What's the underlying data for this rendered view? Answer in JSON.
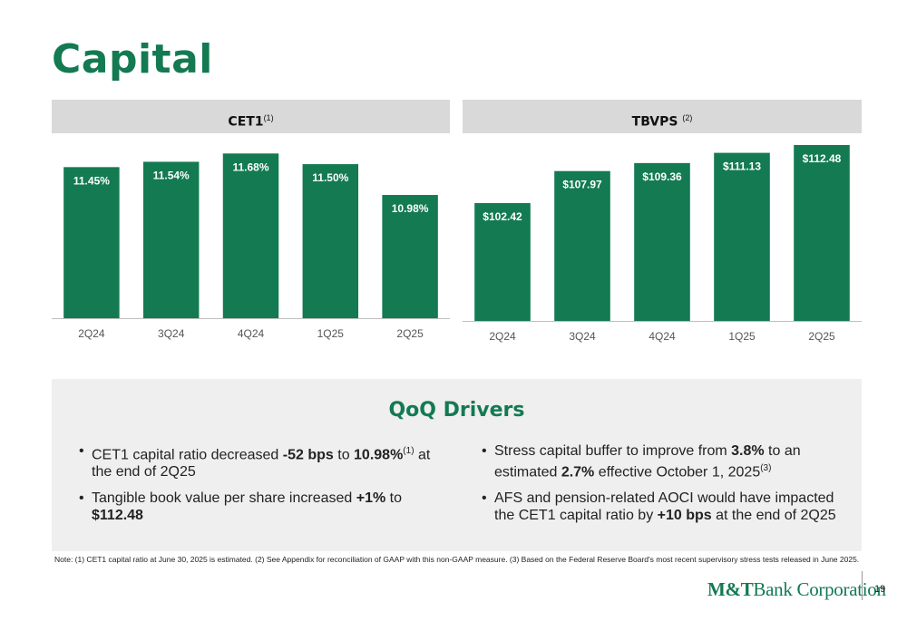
{
  "title": "Capital",
  "panels": {
    "cet1": {
      "title": "CET1",
      "sup": "(1)"
    },
    "tbv": {
      "title": "TBVPS",
      "sup": "(2)"
    }
  },
  "chart_data": [
    {
      "type": "bar",
      "title": "CET1(1)",
      "categories": [
        "2Q24",
        "3Q24",
        "4Q24",
        "1Q25",
        "2Q25"
      ],
      "values": [
        11.45,
        11.54,
        11.68,
        11.5,
        10.98
      ],
      "labels": [
        "11.45%",
        "11.54%",
        "11.68%",
        "11.50%",
        "10.98%"
      ],
      "ylim": [
        8.9,
        11.7
      ],
      "color": "#137a52",
      "grid": false
    },
    {
      "type": "bar",
      "title": "TBVPS (2)",
      "categories": [
        "2Q24",
        "3Q24",
        "4Q24",
        "1Q25",
        "2Q25"
      ],
      "values": [
        102.42,
        107.97,
        109.36,
        111.13,
        112.48
      ],
      "labels": [
        "$102.42",
        "$107.97",
        "$109.36",
        "$111.13",
        "$112.48"
      ],
      "ylim": [
        82,
        112.48
      ],
      "color": "#137a52",
      "grid": false
    }
  ],
  "drivers": {
    "title": "QoQ Drivers",
    "left": [
      {
        "t1": "CET1 capital ratio decreased ",
        "b1": "-52 bps",
        "t2": " to ",
        "b2": "10.98%",
        "sup": "(1)",
        "t3": " at the end of 2Q25"
      },
      {
        "t1": "Tangible book value per share increased ",
        "b1": "+1%",
        "t2": " to ",
        "b2": "$112.48"
      }
    ],
    "right": [
      {
        "t1": "Stress capital buffer to improve from ",
        "b1": "3.8%",
        "t2": " to an estimated ",
        "b2": "2.7%",
        "t3": " effective October 1, 2025",
        "sup": "(3)"
      },
      {
        "t1": "AFS and pension-related AOCI would have impacted the CET1 capital ratio by ",
        "b1": "+10 bps",
        "t2": " at the end of 2Q25"
      }
    ]
  },
  "note": "Note: (1) CET1 capital ratio at June 30, 2025 is estimated. (2) See Appendix for reconciliation of GAAP with this non-GAAP measure. (3) Based on the Federal Reserve Board's most recent supervisory stress tests released in June 2025.",
  "footer": {
    "logo_bold": "M&T",
    "logo_rest": "Bank Corporation",
    "page": "19"
  }
}
